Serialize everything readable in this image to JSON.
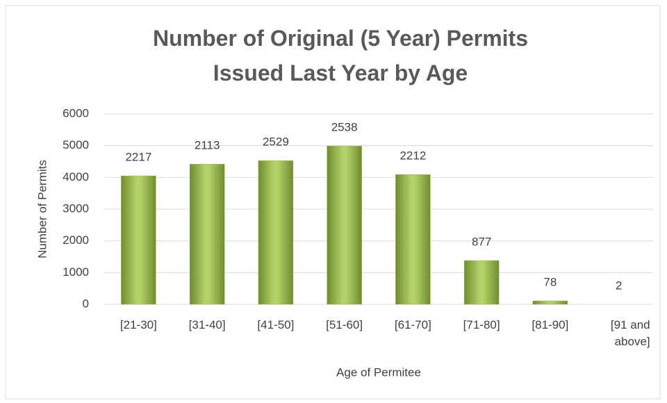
{
  "chart_data": {
    "type": "bar",
    "title": "Number of Original (5 Year) Permits Issued Last Year by Age",
    "x_label": "Age of Permitee",
    "y_label": "Number of Permits",
    "categories": [
      "[21-30]",
      "[31-40]",
      "[41-50]",
      "[51-60]",
      "[61-70]",
      "[71-80]",
      "[81-90]",
      "[91 and above]"
    ],
    "values": [
      4050,
      4420,
      4530,
      4990,
      4090,
      1380,
      110,
      0
    ],
    "annotations": [
      2217,
      2113,
      2529,
      2538,
      2212,
      877,
      78,
      2
    ],
    "color": "#9bbb59",
    "ylim": [
      0,
      6000
    ],
    "yticks": [
      0,
      1000,
      2000,
      3000,
      4000,
      5000,
      6000
    ],
    "grid": true
  }
}
